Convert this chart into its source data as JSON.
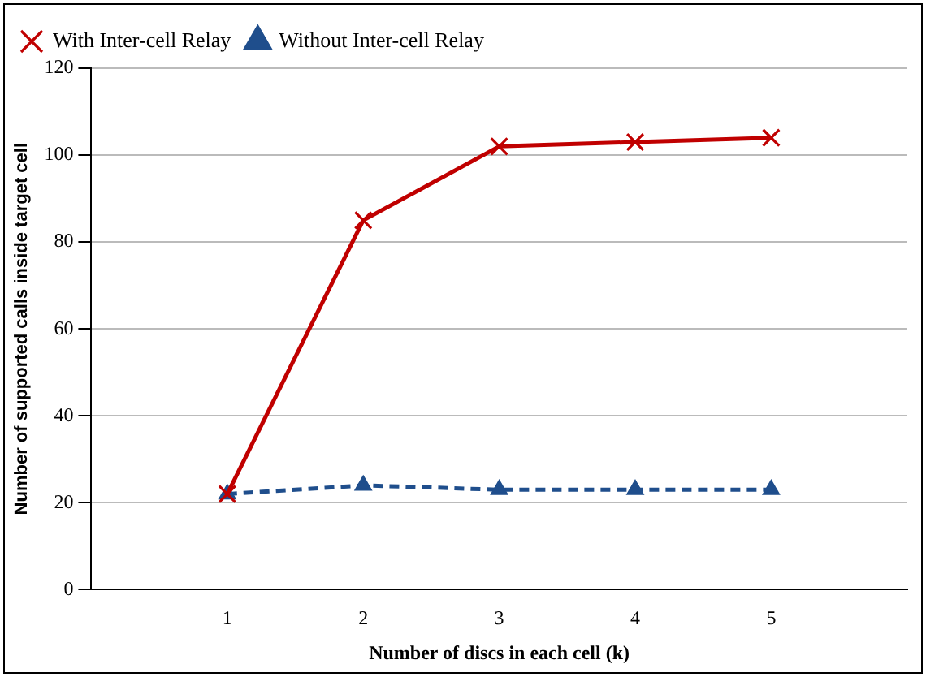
{
  "chart_data": {
    "type": "line",
    "xlabel": "Number of discs in each cell (k)",
    "ylabel": "Number of supported calls inside target cell",
    "x": [
      1,
      2,
      3,
      4,
      5
    ],
    "xlim": [
      0,
      6
    ],
    "xticks": [
      1,
      2,
      3,
      4,
      5
    ],
    "ylim": [
      0,
      120
    ],
    "yticks": [
      0,
      20,
      40,
      60,
      80,
      100,
      120
    ],
    "grid": "y",
    "legend": "top left",
    "series": [
      {
        "name": "Without Inter-cell Relay",
        "color": "#1f4e8c",
        "values": [
          22,
          24,
          23,
          23,
          23
        ],
        "marker": "triangle",
        "line_style": "dashed"
      },
      {
        "name": "With Inter-cell Relay",
        "color": "#c00000",
        "values": [
          22,
          85,
          102,
          103,
          104
        ],
        "marker": "cross",
        "line_style": "solid"
      }
    ]
  }
}
